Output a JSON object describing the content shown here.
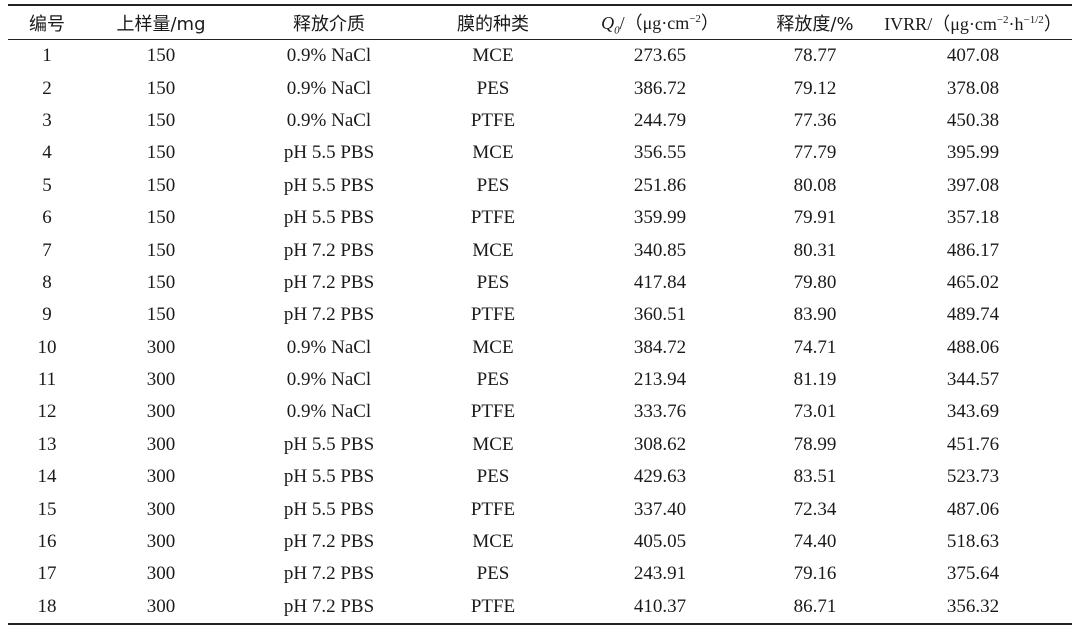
{
  "table": {
    "headers": {
      "id": "编号",
      "load": "上样量/mg",
      "medium": "释放介质",
      "membrane": "膜的种类",
      "q_symbol": "Q",
      "q_sub": "0",
      "q_unit_a": "/（μg·cm",
      "q_unit_sup": "−2",
      "q_unit_b": "）",
      "release": "释放度/%",
      "ivrr_a": "IVRR/（μg·cm",
      "ivrr_sup1": "−2",
      "ivrr_b": "·h",
      "ivrr_sup2": "−1/2",
      "ivrr_c": "）"
    },
    "rows": [
      [
        "1",
        "150",
        "0.9% NaCl",
        "MCE",
        "273.65",
        "78.77",
        "407.08"
      ],
      [
        "2",
        "150",
        "0.9% NaCl",
        "PES",
        "386.72",
        "79.12",
        "378.08"
      ],
      [
        "3",
        "150",
        "0.9% NaCl",
        "PTFE",
        "244.79",
        "77.36",
        "450.38"
      ],
      [
        "4",
        "150",
        "pH 5.5 PBS",
        "MCE",
        "356.55",
        "77.79",
        "395.99"
      ],
      [
        "5",
        "150",
        "pH 5.5 PBS",
        "PES",
        "251.86",
        "80.08",
        "397.08"
      ],
      [
        "6",
        "150",
        "pH 5.5 PBS",
        "PTFE",
        "359.99",
        "79.91",
        "357.18"
      ],
      [
        "7",
        "150",
        "pH 7.2 PBS",
        "MCE",
        "340.85",
        "80.31",
        "486.17"
      ],
      [
        "8",
        "150",
        "pH 7.2 PBS",
        "PES",
        "417.84",
        "79.80",
        "465.02"
      ],
      [
        "9",
        "150",
        "pH 7.2 PBS",
        "PTFE",
        "360.51",
        "83.90",
        "489.74"
      ],
      [
        "10",
        "300",
        "0.9% NaCl",
        "MCE",
        "384.72",
        "74.71",
        "488.06"
      ],
      [
        "11",
        "300",
        "0.9% NaCl",
        "PES",
        "213.94",
        "81.19",
        "344.57"
      ],
      [
        "12",
        "300",
        "0.9% NaCl",
        "PTFE",
        "333.76",
        "73.01",
        "343.69"
      ],
      [
        "13",
        "300",
        "pH 5.5 PBS",
        "MCE",
        "308.62",
        "78.99",
        "451.76"
      ],
      [
        "14",
        "300",
        "pH 5.5 PBS",
        "PES",
        "429.63",
        "83.51",
        "523.73"
      ],
      [
        "15",
        "300",
        "pH 5.5 PBS",
        "PTFE",
        "337.40",
        "72.34",
        "487.06"
      ],
      [
        "16",
        "300",
        "pH 7.2 PBS",
        "MCE",
        "405.05",
        "74.40",
        "518.63"
      ],
      [
        "17",
        "300",
        "pH 7.2 PBS",
        "PES",
        "243.91",
        "79.16",
        "375.64"
      ],
      [
        "18",
        "300",
        "pH 7.2 PBS",
        "PTFE",
        "410.37",
        "86.71",
        "356.32"
      ]
    ]
  }
}
